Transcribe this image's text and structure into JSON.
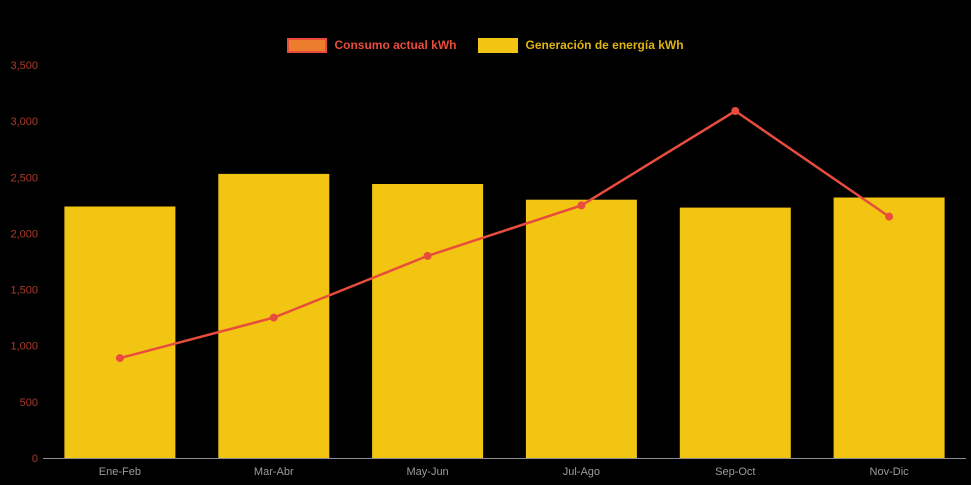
{
  "chart_data": {
    "type": "bar",
    "subtype": "bar-with-line-overlay",
    "title": "",
    "xlabel": "",
    "ylabel": "",
    "categories": [
      "Ene-Feb",
      "Mar-Abr",
      "May-Jun",
      "Jul-Ago",
      "Sep-Oct",
      "Nov-Dic"
    ],
    "series": [
      {
        "name": "Consumo actual kWh",
        "type": "line",
        "color": "#e84c3d",
        "point_color": "#e84c3d",
        "values": [
          890,
          1250,
          1800,
          2250,
          3090,
          2150
        ]
      },
      {
        "name": "Generación de energía kWh",
        "type": "bar",
        "color": "#f2c512",
        "values": [
          2240,
          2530,
          2440,
          2300,
          2230,
          2320
        ]
      }
    ],
    "ylim": [
      0,
      3500
    ],
    "ytick_step": 500,
    "ytick_labels": [
      "0",
      "500",
      "1,000",
      "1,500",
      "2,000",
      "2,500",
      "3,000",
      "3,500"
    ],
    "grid": false,
    "legend_position": "top",
    "background": "#000000"
  },
  "legend": {
    "items": [
      {
        "label": "Consumo actual kWh",
        "swatch_fill": "#ec7d2d",
        "swatch_border": "#e84c3d",
        "text_color": "#e84c3d"
      },
      {
        "label": "Generación de energía kWh",
        "swatch_fill": "#f2c512",
        "swatch_border": "#f2c512",
        "text_color": "#dfb410"
      }
    ]
  },
  "axes": {
    "y_label_color": "#ab3a2c",
    "x_label_color": "#9b9b9b",
    "baseline_color": "#8e8e8e"
  }
}
